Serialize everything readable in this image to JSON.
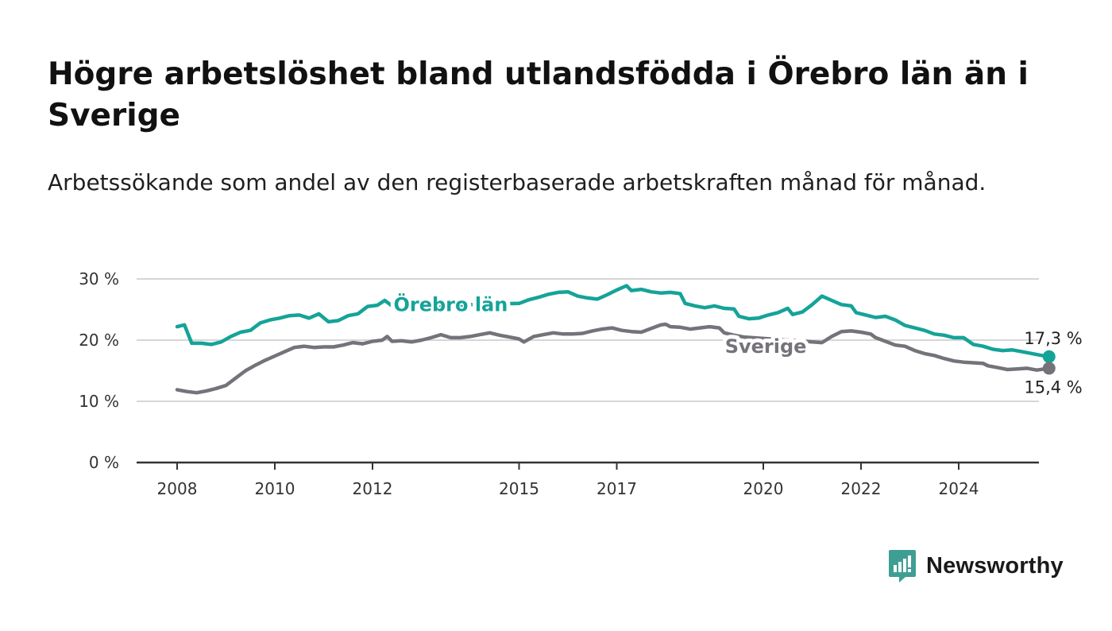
{
  "title": "Högre arbetslöshet bland utlandsfödda i Örebro län än i Sverige",
  "subtitle": "Arbetssökande som andel av den registerbaserade arbetskraften månad för månad.",
  "brand": {
    "name": "Newsworthy",
    "color": "#3f9e93",
    "icon": "bar-chart-speech-bubble-icon"
  },
  "chart_data": {
    "type": "line",
    "x_range": [
      2007.7,
      2025.85
    ],
    "ylim": [
      0,
      30
    ],
    "yticks": [
      0,
      10,
      20,
      30
    ],
    "ytick_labels": [
      "0 %",
      "10 %",
      "20 %",
      "30 %"
    ],
    "xticks": [
      2008,
      2010,
      2012,
      2015,
      2017,
      2020,
      2022,
      2024
    ],
    "xtick_labels": [
      "2008",
      "2010",
      "2012",
      "2015",
      "2017",
      "2020",
      "2022",
      "2024"
    ],
    "grid": "horizontal",
    "legend": "inline labels on lines",
    "series": [
      {
        "name": "Örebro län",
        "color": "#15a398",
        "end_label": "17,3 %",
        "points": [
          [
            2008.0,
            22.2
          ],
          [
            2008.15,
            22.5
          ],
          [
            2008.3,
            19.5
          ],
          [
            2008.5,
            19.5
          ],
          [
            2008.7,
            19.3
          ],
          [
            2008.9,
            19.7
          ],
          [
            2009.1,
            20.6
          ],
          [
            2009.3,
            21.3
          ],
          [
            2009.5,
            21.6
          ],
          [
            2009.7,
            22.8
          ],
          [
            2009.9,
            23.3
          ],
          [
            2010.1,
            23.6
          ],
          [
            2010.3,
            24.0
          ],
          [
            2010.5,
            24.1
          ],
          [
            2010.7,
            23.6
          ],
          [
            2010.9,
            24.3
          ],
          [
            2011.1,
            23.0
          ],
          [
            2011.3,
            23.2
          ],
          [
            2011.5,
            24.0
          ],
          [
            2011.7,
            24.3
          ],
          [
            2011.9,
            25.5
          ],
          [
            2012.1,
            25.7
          ],
          [
            2012.25,
            26.5
          ],
          [
            2012.4,
            25.6
          ],
          [
            2012.6,
            25.5
          ],
          [
            2015.0,
            26.0
          ],
          [
            2015.2,
            26.6
          ],
          [
            2015.4,
            27.0
          ],
          [
            2015.6,
            27.5
          ],
          [
            2015.8,
            27.8
          ],
          [
            2016.0,
            27.9
          ],
          [
            2016.2,
            27.2
          ],
          [
            2016.4,
            26.9
          ],
          [
            2016.6,
            26.7
          ],
          [
            2016.8,
            27.4
          ],
          [
            2017.0,
            28.2
          ],
          [
            2017.2,
            28.9
          ],
          [
            2017.3,
            28.1
          ],
          [
            2017.5,
            28.3
          ],
          [
            2017.7,
            27.9
          ],
          [
            2017.9,
            27.7
          ],
          [
            2018.1,
            27.8
          ],
          [
            2018.3,
            27.6
          ],
          [
            2018.4,
            26.0
          ],
          [
            2018.6,
            25.6
          ],
          [
            2018.8,
            25.3
          ],
          [
            2019.0,
            25.6
          ],
          [
            2019.2,
            25.2
          ],
          [
            2019.4,
            25.1
          ],
          [
            2019.5,
            23.9
          ],
          [
            2019.7,
            23.5
          ],
          [
            2019.9,
            23.6
          ],
          [
            2020.1,
            24.1
          ],
          [
            2020.3,
            24.5
          ],
          [
            2020.5,
            25.2
          ],
          [
            2020.6,
            24.2
          ],
          [
            2020.8,
            24.6
          ],
          [
            2021.0,
            25.8
          ],
          [
            2021.2,
            27.2
          ],
          [
            2021.4,
            26.5
          ],
          [
            2021.6,
            25.8
          ],
          [
            2021.8,
            25.6
          ],
          [
            2021.9,
            24.5
          ],
          [
            2022.1,
            24.1
          ],
          [
            2022.3,
            23.7
          ],
          [
            2022.5,
            23.9
          ],
          [
            2022.7,
            23.3
          ],
          [
            2022.9,
            22.4
          ],
          [
            2023.1,
            22.0
          ],
          [
            2023.3,
            21.6
          ],
          [
            2023.5,
            21.0
          ],
          [
            2023.7,
            20.8
          ],
          [
            2023.9,
            20.4
          ],
          [
            2024.1,
            20.4
          ],
          [
            2024.3,
            19.3
          ],
          [
            2024.5,
            19.0
          ],
          [
            2024.7,
            18.5
          ],
          [
            2024.9,
            18.3
          ],
          [
            2025.1,
            18.4
          ],
          [
            2025.3,
            18.1
          ],
          [
            2025.5,
            17.8
          ],
          [
            2025.7,
            17.5
          ],
          [
            2025.85,
            17.3
          ]
        ]
      },
      {
        "name": "Sverige",
        "color": "#76727a",
        "end_label": "15,4 %",
        "points": [
          [
            2008.0,
            11.9
          ],
          [
            2008.2,
            11.6
          ],
          [
            2008.4,
            11.4
          ],
          [
            2008.6,
            11.7
          ],
          [
            2008.8,
            12.1
          ],
          [
            2009.0,
            12.6
          ],
          [
            2009.2,
            13.8
          ],
          [
            2009.4,
            15.0
          ],
          [
            2009.6,
            15.9
          ],
          [
            2009.8,
            16.7
          ],
          [
            2010.0,
            17.4
          ],
          [
            2010.2,
            18.1
          ],
          [
            2010.4,
            18.8
          ],
          [
            2010.6,
            19.0
          ],
          [
            2010.8,
            18.8
          ],
          [
            2011.0,
            18.9
          ],
          [
            2011.2,
            18.9
          ],
          [
            2011.4,
            19.2
          ],
          [
            2011.6,
            19.6
          ],
          [
            2011.8,
            19.4
          ],
          [
            2012.0,
            19.8
          ],
          [
            2012.2,
            20.0
          ],
          [
            2012.3,
            20.6
          ],
          [
            2012.4,
            19.8
          ],
          [
            2012.6,
            19.9
          ],
          [
            2012.8,
            19.7
          ],
          [
            2013.0,
            20.0
          ],
          [
            2013.2,
            20.4
          ],
          [
            2013.4,
            20.9
          ],
          [
            2013.6,
            20.4
          ],
          [
            2013.8,
            20.4
          ],
          [
            2014.0,
            20.6
          ],
          [
            2014.2,
            20.9
          ],
          [
            2014.4,
            21.2
          ],
          [
            2014.6,
            20.8
          ],
          [
            2014.8,
            20.5
          ],
          [
            2015.0,
            20.2
          ],
          [
            2015.1,
            19.7
          ],
          [
            2015.3,
            20.6
          ],
          [
            2015.5,
            20.9
          ],
          [
            2015.7,
            21.2
          ],
          [
            2015.9,
            21.0
          ],
          [
            2016.1,
            21.0
          ],
          [
            2016.3,
            21.1
          ],
          [
            2016.5,
            21.5
          ],
          [
            2016.7,
            21.8
          ],
          [
            2016.9,
            22.0
          ],
          [
            2017.1,
            21.6
          ],
          [
            2017.3,
            21.4
          ],
          [
            2017.5,
            21.3
          ],
          [
            2017.7,
            21.9
          ],
          [
            2017.9,
            22.5
          ],
          [
            2018.0,
            22.6
          ],
          [
            2018.1,
            22.2
          ],
          [
            2018.3,
            22.1
          ],
          [
            2018.5,
            21.8
          ],
          [
            2018.7,
            22.0
          ],
          [
            2018.9,
            22.2
          ],
          [
            2019.1,
            22.0
          ],
          [
            2019.2,
            21.2
          ],
          [
            2019.4,
            20.8
          ],
          [
            2019.6,
            20.5
          ],
          [
            2021.2,
            19.6
          ],
          [
            2021.4,
            20.6
          ],
          [
            2021.6,
            21.4
          ],
          [
            2021.8,
            21.5
          ],
          [
            2022.0,
            21.3
          ],
          [
            2022.2,
            21.0
          ],
          [
            2022.3,
            20.4
          ],
          [
            2022.5,
            19.8
          ],
          [
            2022.7,
            19.2
          ],
          [
            2022.9,
            19.0
          ],
          [
            2023.1,
            18.3
          ],
          [
            2023.3,
            17.8
          ],
          [
            2023.5,
            17.5
          ],
          [
            2023.7,
            17.0
          ],
          [
            2023.9,
            16.6
          ],
          [
            2024.1,
            16.4
          ],
          [
            2024.3,
            16.3
          ],
          [
            2024.5,
            16.2
          ],
          [
            2024.6,
            15.8
          ],
          [
            2024.8,
            15.5
          ],
          [
            2025.0,
            15.2
          ],
          [
            2025.2,
            15.3
          ],
          [
            2025.4,
            15.4
          ],
          [
            2025.6,
            15.1
          ],
          [
            2025.85,
            15.4
          ]
        ]
      }
    ]
  }
}
